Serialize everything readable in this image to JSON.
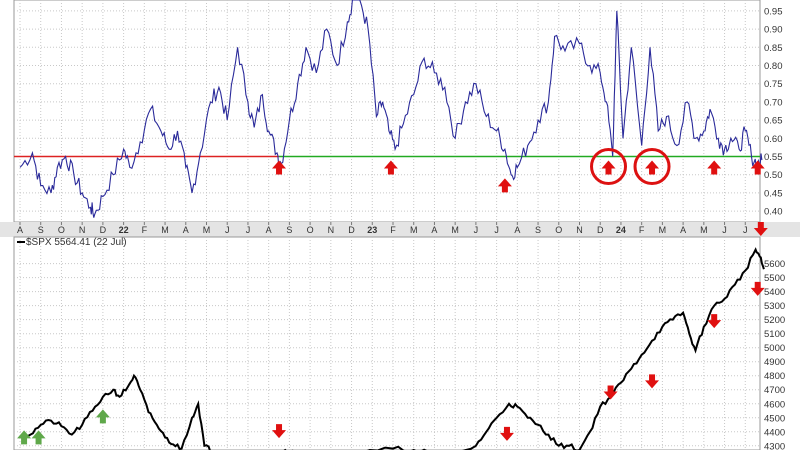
{
  "chart_data": [
    {
      "type": "line",
      "panel": "indicator",
      "ylim": [
        0.37,
        0.98
      ],
      "yticks": [
        0.4,
        0.45,
        0.5,
        0.55,
        0.6,
        0.65,
        0.7,
        0.75,
        0.8,
        0.85,
        0.9,
        0.95
      ],
      "ytick_labels": [
        "0.40",
        "0.45",
        "0.50",
        "0.55",
        "0.60",
        "0.65",
        "0.70",
        "0.75",
        "0.80",
        "0.85",
        "0.90",
        "0.95"
      ],
      "xtick_labels": [
        "A",
        "S",
        "O",
        "N",
        "D",
        "22",
        "F",
        "M",
        "A",
        "M",
        "J",
        "J",
        "A",
        "S",
        "O",
        "N",
        "D",
        "23",
        "F",
        "M",
        "A",
        "M",
        "J",
        "J",
        "A",
        "S",
        "O",
        "N",
        "D",
        "24",
        "F",
        "M",
        "A",
        "M",
        "J",
        "J"
      ],
      "bold_ticks": [
        "22",
        "23",
        "24"
      ],
      "reference_line": {
        "value": 0.55,
        "above_color": "#22aa22",
        "below_color": "#dd2222"
      },
      "x_start": 0,
      "x_end": 35.8,
      "anchors": [
        [
          0,
          0.52
        ],
        [
          0.6,
          0.56
        ],
        [
          1,
          0.47
        ],
        [
          1.5,
          0.45
        ],
        [
          1.8,
          0.52
        ],
        [
          2.2,
          0.55
        ],
        [
          2.6,
          0.5
        ],
        [
          3,
          0.45
        ],
        [
          3.4,
          0.41
        ],
        [
          3.6,
          0.39
        ],
        [
          4,
          0.44
        ],
        [
          4.5,
          0.5
        ],
        [
          5,
          0.57
        ],
        [
          5.3,
          0.52
        ],
        [
          5.8,
          0.59
        ],
        [
          6.3,
          0.68
        ],
        [
          6.8,
          0.62
        ],
        [
          7.2,
          0.57
        ],
        [
          7.6,
          0.62
        ],
        [
          8,
          0.52
        ],
        [
          8.3,
          0.45
        ],
        [
          8.7,
          0.56
        ],
        [
          9.2,
          0.7
        ],
        [
          9.6,
          0.74
        ],
        [
          10,
          0.65
        ],
        [
          10.5,
          0.85
        ],
        [
          11,
          0.7
        ],
        [
          11.3,
          0.63
        ],
        [
          11.7,
          0.72
        ],
        [
          12,
          0.62
        ],
        [
          12.4,
          0.56
        ],
        [
          12.6,
          0.53
        ],
        [
          13,
          0.65
        ],
        [
          13.4,
          0.75
        ],
        [
          13.8,
          0.85
        ],
        [
          14.3,
          0.78
        ],
        [
          14.8,
          0.9
        ],
        [
          15.3,
          0.8
        ],
        [
          15.8,
          0.92
        ],
        [
          16.1,
          0.99
        ],
        [
          16.4,
          0.98
        ],
        [
          16.8,
          0.9
        ],
        [
          17.2,
          0.66
        ],
        [
          17.5,
          0.7
        ],
        [
          17.8,
          0.62
        ],
        [
          18.1,
          0.57
        ],
        [
          18.5,
          0.64
        ],
        [
          19,
          0.72
        ],
        [
          19.5,
          0.82
        ],
        [
          20,
          0.78
        ],
        [
          20.5,
          0.74
        ],
        [
          21,
          0.6
        ],
        [
          21.5,
          0.7
        ],
        [
          22,
          0.75
        ],
        [
          22.5,
          0.66
        ],
        [
          23,
          0.62
        ],
        [
          23.4,
          0.57
        ],
        [
          23.7,
          0.5
        ],
        [
          24,
          0.52
        ],
        [
          24.5,
          0.58
        ],
        [
          25,
          0.65
        ],
        [
          25.5,
          0.7
        ],
        [
          25.8,
          0.88
        ],
        [
          26.3,
          0.84
        ],
        [
          27,
          0.86
        ],
        [
          27.5,
          0.8
        ],
        [
          28,
          0.78
        ],
        [
          28.3,
          0.7
        ],
        [
          28.6,
          0.55
        ],
        [
          28.8,
          0.95
        ],
        [
          29.1,
          0.6
        ],
        [
          29.5,
          0.85
        ],
        [
          30,
          0.58
        ],
        [
          30.4,
          0.85
        ],
        [
          30.8,
          0.62
        ],
        [
          31.2,
          0.66
        ],
        [
          31.7,
          0.58
        ],
        [
          32.2,
          0.7
        ],
        [
          32.6,
          0.6
        ],
        [
          33,
          0.62
        ],
        [
          33.3,
          0.68
        ],
        [
          33.7,
          0.6
        ],
        [
          34,
          0.57
        ],
        [
          34.3,
          0.6
        ],
        [
          34.7,
          0.57
        ],
        [
          35,
          0.62
        ],
        [
          35.3,
          0.55
        ],
        [
          35.6,
          0.53
        ],
        [
          35.8,
          0.54
        ]
      ],
      "up_arrows_at": [
        12.5,
        17.9,
        23.4,
        28.4,
        30.5,
        33.5,
        35.6
      ],
      "circles_at": [
        28.4,
        30.5
      ]
    },
    {
      "type": "line",
      "panel": "price",
      "legend": "$SPX 5564.41 (22 Jul)",
      "ylim": [
        4270,
        5790
      ],
      "yticks": [
        4300,
        4400,
        4500,
        4600,
        4700,
        4800,
        4900,
        5000,
        5100,
        5200,
        5300,
        5400,
        5500,
        5600
      ],
      "ytick_labels": [
        "4300",
        "4400",
        "4500",
        "4600",
        "4700",
        "4800",
        "4900",
        "5000",
        "5100",
        "5200",
        "5300",
        "5400",
        "5500",
        "5600"
      ],
      "x_start": 0,
      "x_end": 35.8,
      "anchors": [
        [
          0,
          4370
        ],
        [
          0.5,
          4380
        ],
        [
          1,
          4450
        ],
        [
          1.5,
          4480
        ],
        [
          2,
          4440
        ],
        [
          2.5,
          4380
        ],
        [
          3,
          4450
        ],
        [
          3.5,
          4550
        ],
        [
          4,
          4650
        ],
        [
          4.5,
          4700
        ],
        [
          4.8,
          4650
        ],
        [
          5.2,
          4720
        ],
        [
          5.5,
          4800
        ],
        [
          5.8,
          4700
        ],
        [
          6.2,
          4540
        ],
        [
          6.6,
          4450
        ],
        [
          7,
          4360
        ],
        [
          7.4,
          4310
        ],
        [
          7.8,
          4280
        ],
        [
          8.3,
          4500
        ],
        [
          8.6,
          4600
        ],
        [
          8.9,
          4300
        ],
        [
          9.3,
          4260
        ],
        [
          10,
          4250
        ],
        [
          11,
          4250
        ],
        [
          12,
          4250
        ],
        [
          12.8,
          4270
        ],
        [
          13.5,
          4240
        ],
        [
          15,
          4240
        ],
        [
          16.5,
          4250
        ],
        [
          18,
          4280
        ],
        [
          19,
          4270
        ],
        [
          20,
          4250
        ],
        [
          21,
          4240
        ],
        [
          22,
          4300
        ],
        [
          22.5,
          4400
        ],
        [
          23,
          4500
        ],
        [
          23.6,
          4600
        ],
        [
          24,
          4580
        ],
        [
          24.5,
          4500
        ],
        [
          25,
          4450
        ],
        [
          25.5,
          4380
        ],
        [
          26,
          4300
        ],
        [
          26.5,
          4300
        ],
        [
          27,
          4270
        ],
        [
          27.5,
          4400
        ],
        [
          28,
          4580
        ],
        [
          28.5,
          4650
        ],
        [
          29,
          4750
        ],
        [
          29.5,
          4850
        ],
        [
          30,
          4950
        ],
        [
          30.5,
          5050
        ],
        [
          31,
          5150
        ],
        [
          31.5,
          5200
        ],
        [
          32,
          5250
        ],
        [
          32.3,
          5100
        ],
        [
          32.6,
          4980
        ],
        [
          33,
          5150
        ],
        [
          33.5,
          5300
        ],
        [
          34,
          5350
        ],
        [
          34.5,
          5450
        ],
        [
          35,
          5550
        ],
        [
          35.5,
          5700
        ],
        [
          35.7,
          5650
        ],
        [
          35.9,
          5560
        ]
      ],
      "down_arrows_at": [
        12.5,
        23.5,
        28.5,
        30.5,
        33.5,
        35.6
      ],
      "up_arrows_at": [
        0.1,
        0.8,
        4.0
      ]
    }
  ]
}
